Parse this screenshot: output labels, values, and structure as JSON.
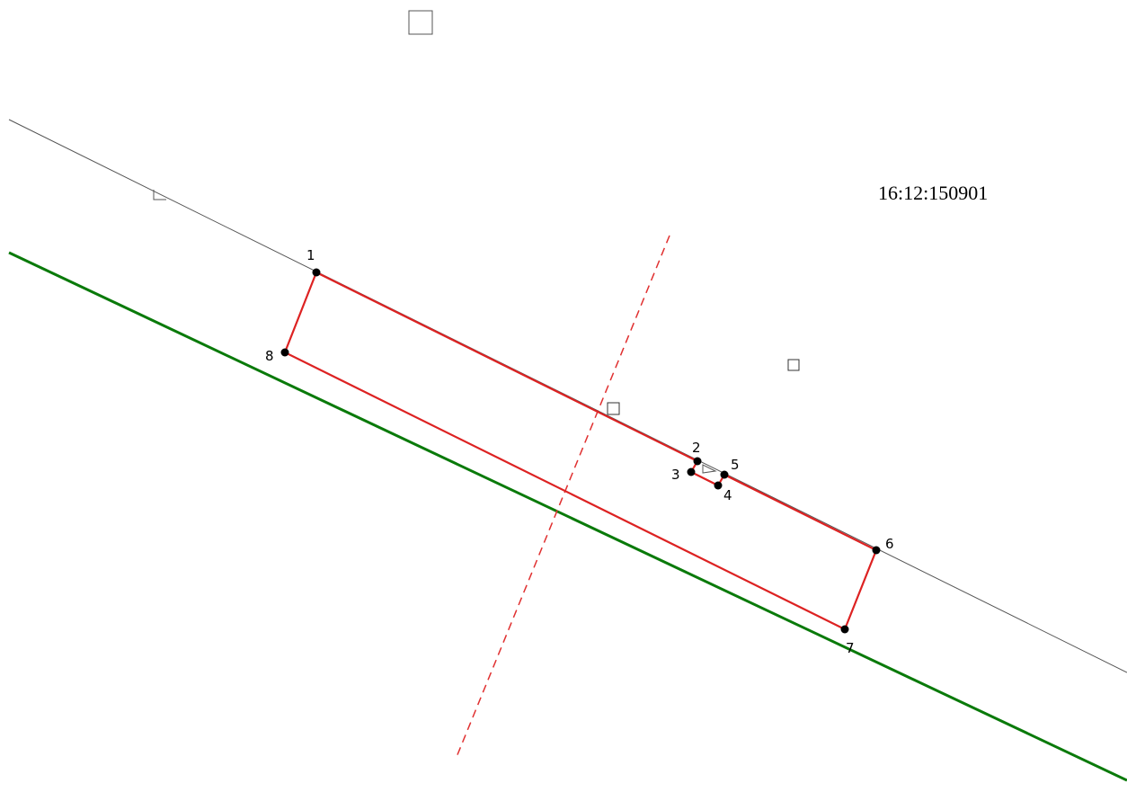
{
  "cadastral_number": "16:12:150901",
  "points": [
    {
      "label": "1"
    },
    {
      "label": "2"
    },
    {
      "label": "3"
    },
    {
      "label": "4"
    },
    {
      "label": "5"
    },
    {
      "label": "6"
    },
    {
      "label": "7"
    },
    {
      "label": "8"
    }
  ]
}
